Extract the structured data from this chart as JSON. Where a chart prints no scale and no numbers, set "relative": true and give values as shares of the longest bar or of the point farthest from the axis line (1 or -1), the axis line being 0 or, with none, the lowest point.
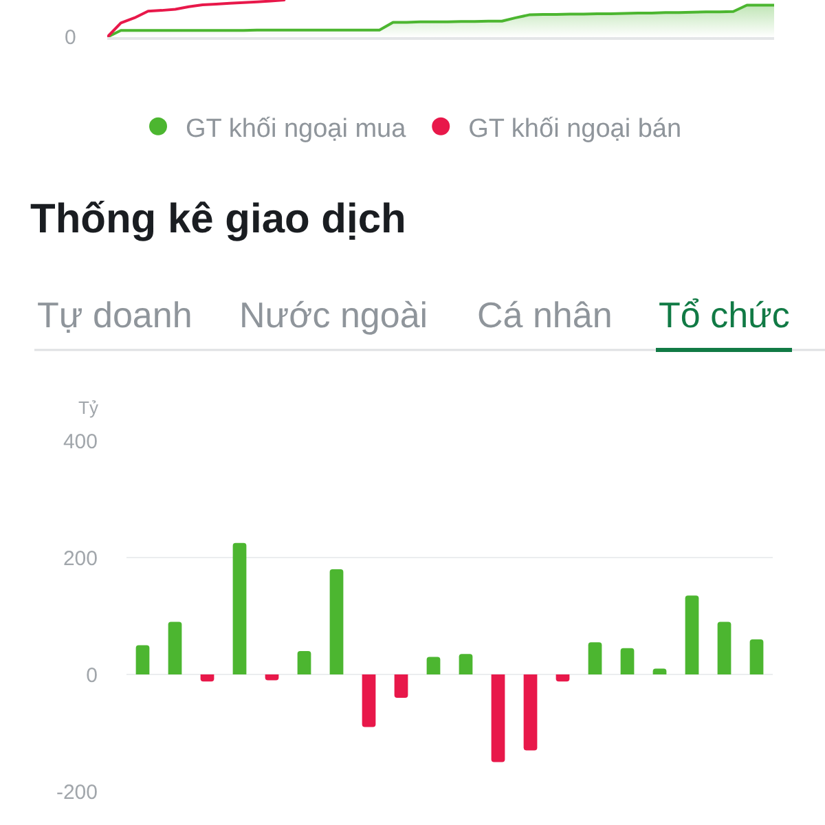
{
  "chart_data": [
    {
      "type": "line",
      "relative": true,
      "tick_labels": false,
      "legend": "bottom",
      "annotations": [
        "0"
      ],
      "categories": [
        null,
        null,
        null,
        null,
        null,
        null,
        null,
        null,
        null,
        null,
        null,
        null,
        null,
        null,
        null,
        null,
        null,
        null,
        null,
        null,
        null,
        null,
        null,
        null,
        null,
        null,
        null,
        null,
        null,
        null,
        null,
        null,
        null,
        null,
        null,
        null,
        null,
        null,
        null,
        null,
        null,
        null,
        null,
        null,
        null,
        null,
        null,
        null,
        null,
        null
      ],
      "series": [
        {
          "name": "GT khối ngoại mua",
          "color": "#4cb630",
          "type": "area",
          "values": [
            0,
            0.18,
            0.18,
            0.18,
            0.18,
            0.18,
            0.18,
            0.18,
            0.18,
            0.18,
            0.18,
            0.19,
            0.19,
            0.19,
            0.19,
            0.19,
            0.19,
            0.19,
            0.19,
            0.19,
            0.19,
            0.4,
            0.4,
            0.41,
            0.41,
            0.41,
            0.42,
            0.42,
            0.43,
            0.43,
            0.52,
            0.6,
            0.61,
            0.61,
            0.62,
            0.62,
            0.63,
            0.63,
            0.64,
            0.65,
            0.65,
            0.66,
            0.66,
            0.67,
            0.68,
            0.68,
            0.69,
            0.86,
            0.86,
            0.86
          ]
        },
        {
          "name": "GT khối ngoại bán",
          "color": "#e8184a",
          "values": [
            0,
            0.38,
            0.52,
            0.7,
            0.72,
            0.75,
            0.82,
            0.87,
            0.89,
            0.91,
            0.93,
            0.95,
            0.97,
            1.0,
            null,
            null,
            null,
            null,
            null,
            null,
            null,
            null,
            null,
            null,
            null,
            null,
            null,
            null,
            null,
            null,
            null,
            null,
            null,
            null,
            null,
            null,
            null,
            null,
            null,
            null,
            null,
            null,
            null,
            null,
            null,
            null,
            null,
            null,
            null,
            null
          ]
        }
      ]
    },
    {
      "type": "bar",
      "title": "Thống kê giao dịch",
      "annotations": [
        "Tự doanh",
        "Nước ngoài",
        "Cá nhân",
        "Tổ chức"
      ],
      "ylabel": "Tỷ",
      "categories": [
        null,
        null,
        null,
        null,
        null,
        null,
        null,
        null,
        null,
        null,
        null,
        null,
        null,
        null,
        null,
        null,
        null,
        null,
        null,
        null
      ],
      "values": [
        50,
        90,
        -12,
        225,
        -10,
        40,
        180,
        -90,
        -40,
        30,
        35,
        -150,
        -130,
        -12,
        55,
        45,
        10,
        135,
        90,
        60
      ],
      "colors": [
        "#4cb630",
        "#4cb630",
        "#e8184a",
        "#4cb630",
        "#e8184a",
        "#4cb630",
        "#4cb630",
        "#e8184a",
        "#e8184a",
        "#4cb630",
        "#4cb630",
        "#e8184a",
        "#e8184a",
        "#e8184a",
        "#4cb630",
        "#4cb630",
        "#4cb630",
        "#4cb630",
        "#4cb630",
        "#4cb630"
      ],
      "ylim": [
        -200,
        400
      ],
      "yticks": [
        -200,
        0,
        200,
        400
      ],
      "grid": "y",
      "tick_labels": "y"
    }
  ]
}
